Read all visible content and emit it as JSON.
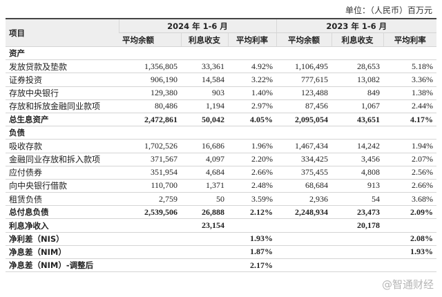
{
  "header": {
    "unit": "单位：（人民币）百万元"
  },
  "table": {
    "item_header": "项目",
    "periods": [
      "2024 年 1-6 月",
      "2023 年 1-6 月"
    ],
    "metrics": [
      "平均余额",
      "利息收支",
      "平均利率",
      "平均余额",
      "利息收支",
      "平均利率"
    ],
    "rows": [
      {
        "bold": true,
        "cells": [
          "资产",
          null,
          null,
          null,
          null,
          null,
          null
        ]
      },
      {
        "bold": false,
        "cells": [
          "发放贷款及垫款",
          "1,356,805",
          "33,361",
          "4.92%",
          "1,106,495",
          "28,653",
          "5.18%"
        ]
      },
      {
        "bold": false,
        "cells": [
          "证券投资",
          "906,190",
          "14,584",
          "3.22%",
          "777,615",
          "13,082",
          "3.36%"
        ]
      },
      {
        "bold": false,
        "cells": [
          "存放中央银行",
          "129,380",
          "903",
          "1.40%",
          "123,488",
          "849",
          "1.38%"
        ]
      },
      {
        "bold": false,
        "cells": [
          "存放和拆放金融同业款项",
          "80,486",
          "1,194",
          "2.97%",
          "87,456",
          "1,067",
          "2.44%"
        ]
      },
      {
        "bold": true,
        "cells": [
          "总生息资产",
          "2,472,861",
          "50,042",
          "4.05%",
          "2,095,054",
          "43,651",
          "4.17%"
        ]
      },
      {
        "bold": true,
        "cells": [
          "负债",
          null,
          null,
          null,
          null,
          null,
          null
        ]
      },
      {
        "bold": false,
        "cells": [
          "吸收存款",
          "1,702,526",
          "16,686",
          "1.96%",
          "1,467,434",
          "14,242",
          "1.94%"
        ]
      },
      {
        "bold": false,
        "cells": [
          "金融同业存放和拆入款项",
          "371,567",
          "4,097",
          "2.20%",
          "334,425",
          "3,456",
          "2.07%"
        ]
      },
      {
        "bold": false,
        "cells": [
          "应付债券",
          "351,954",
          "4,684",
          "2.66%",
          "375,455",
          "4,808",
          "2.56%"
        ]
      },
      {
        "bold": false,
        "cells": [
          "向中央银行借款",
          "110,700",
          "1,371",
          "2.48%",
          "68,684",
          "913",
          "2.66%"
        ]
      },
      {
        "bold": false,
        "cells": [
          "租赁负债",
          "2,759",
          "50",
          "3.59%",
          "2,936",
          "54",
          "3.68%"
        ]
      },
      {
        "bold": true,
        "cells": [
          "总付息负债",
          "2,539,506",
          "26,888",
          "2.12%",
          "2,248,934",
          "23,473",
          "2.09%"
        ]
      },
      {
        "bold": true,
        "cells": [
          "利息净收入",
          null,
          "23,154",
          null,
          null,
          "20,178",
          null
        ]
      },
      {
        "bold": true,
        "cells": [
          "净利差（NIS）",
          null,
          null,
          "1.93%",
          null,
          null,
          "2.08%"
        ]
      },
      {
        "bold": true,
        "cells": [
          "净息差（NIM）",
          null,
          null,
          "1.87%",
          null,
          null,
          "1.93%"
        ]
      },
      {
        "bold": true,
        "cells": [
          "净息差（NIM）-调整后",
          null,
          null,
          "2.17%",
          null,
          null,
          null
        ]
      }
    ]
  },
  "watermark": "@智通财经"
}
